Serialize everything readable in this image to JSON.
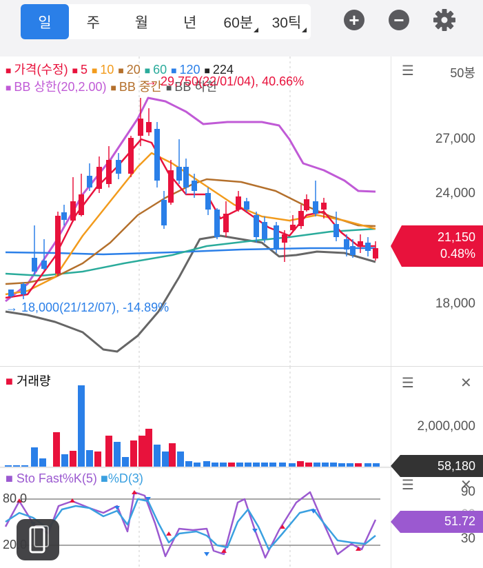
{
  "toolbar": {
    "periods": [
      {
        "label": "일"
      },
      {
        "label": "주"
      },
      {
        "label": "월"
      },
      {
        "label": "년"
      },
      {
        "label": "60분"
      },
      {
        "label": "30틱"
      }
    ],
    "selected": "일",
    "zoom_in": "+",
    "zoom_out": "−"
  },
  "price_panel": {
    "legend_row1": [
      {
        "label": "가격(수정)",
        "color": "#e8123c"
      },
      {
        "label": "5",
        "color": "#e8123c"
      },
      {
        "label": "10",
        "color": "#f29b1c"
      },
      {
        "label": "20",
        "color": "#b4702c"
      },
      {
        "label": "60",
        "color": "#2aab9b"
      },
      {
        "label": "120",
        "color": "#2a7fe8"
      },
      {
        "label": "224",
        "color": "#222222"
      }
    ],
    "legend_row2": [
      {
        "label": "BB 상한(20,2.00)",
        "color": "#c05ad6"
      },
      {
        "label": "BB 중간",
        "color": "#b4702c"
      },
      {
        "label": "BB 하한",
        "color": "#555555"
      }
    ],
    "bars_count": "50봉",
    "high_annotation": "29,750(22/01/04), 40.66%",
    "low_annotation": "18,000(21/12/07), -14.89%",
    "axis_labels": [
      "27,000",
      "24,000",
      "18,000"
    ],
    "current_price": "21,150",
    "current_change": "0.48%"
  },
  "volume_panel": {
    "title": "거래량",
    "axis_label": "2,000,000",
    "current_volume": "58,180"
  },
  "stochastic_panel": {
    "legend_k": "Sto Fast%K(5)",
    "legend_d": "%D(3)",
    "levels": [
      "80.0",
      "20.0"
    ],
    "axis_labels": [
      "90",
      "60",
      "30"
    ],
    "current_value": "51.72"
  },
  "colors": {
    "up": "#e8123c",
    "down": "#2a7fe8",
    "accent": "#2a7fe8",
    "bb": "#c05ad6",
    "stoch_k": "#9b59d0",
    "stoch_d": "#3aa0e0"
  }
}
